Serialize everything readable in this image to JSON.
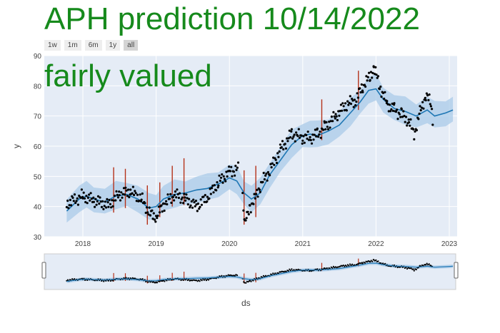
{
  "title": "APH prediction 10/14/2022",
  "subtitle": "fairly valued",
  "range_selector": {
    "buttons": [
      "1w",
      "1m",
      "6m",
      "1y",
      "all"
    ],
    "active": "all"
  },
  "colors": {
    "title": "#168a1c",
    "plot_bg": "#e5ecf6",
    "forecast_line": "#1f77b4",
    "uncertainty_band": "#a9cbe8",
    "actual_points": "#000000",
    "changepoints": "#b5321a"
  },
  "chart_data": {
    "type": "line",
    "title": "APH prediction 10/14/2022",
    "xlabel": "ds",
    "ylabel": "y",
    "xlim": [
      2017.7,
      2023.1
    ],
    "ylim": [
      30,
      90
    ],
    "grid": true,
    "x_ticks": [
      "2018",
      "2019",
      "2020",
      "2021",
      "2022",
      "2023"
    ],
    "y_ticks": [
      30,
      40,
      50,
      60,
      70,
      80,
      90
    ],
    "forecast": {
      "x": [
        2017.78,
        2017.95,
        2018.05,
        2018.15,
        2018.3,
        2018.45,
        2018.6,
        2018.75,
        2018.9,
        2019.0,
        2019.1,
        2019.25,
        2019.4,
        2019.55,
        2019.7,
        2019.85,
        2020.0,
        2020.1,
        2020.2,
        2020.3,
        2020.42,
        2020.55,
        2020.7,
        2020.85,
        2021.0,
        2021.1,
        2021.2,
        2021.35,
        2021.5,
        2021.65,
        2021.78,
        2021.9,
        2022.0,
        2022.1,
        2022.25,
        2022.4,
        2022.55,
        2022.7,
        2022.8,
        2022.95,
        2023.05
      ],
      "y": [
        38.5,
        42.5,
        43.5,
        42.5,
        41.5,
        43.5,
        44,
        42.5,
        39.5,
        40,
        42.5,
        44,
        44.5,
        45.5,
        46,
        47.5,
        49.5,
        48.5,
        44.5,
        42.5,
        44.5,
        50.5,
        55.5,
        60.5,
        63.5,
        64,
        63.5,
        65,
        67,
        71,
        74.5,
        78.5,
        79,
        75.5,
        72.5,
        71.5,
        70,
        72,
        70,
        71,
        72
      ]
    },
    "band_halfwidth": 3.8,
    "actual_segments": [
      {
        "x": [
          2017.78,
          2018.0,
          2018.15,
          2018.35,
          2018.5,
          2018.65,
          2018.8,
          2018.92,
          2019.0,
          2019.1,
          2019.25,
          2019.4,
          2019.55,
          2019.7,
          2019.85,
          2020.0,
          2020.12
        ],
        "y": [
          41,
          43.5,
          42,
          40.5,
          44,
          45,
          42.5,
          37.5,
          36.5,
          40.5,
          44,
          42.5,
          40,
          43,
          48,
          51.5,
          52.5
        ]
      },
      {
        "x": [
          2020.18,
          2020.21,
          2020.24,
          2020.28,
          2020.34,
          2020.42,
          2020.55,
          2020.7,
          2020.85,
          2021.0,
          2021.1,
          2021.2,
          2021.3,
          2021.45,
          2021.6,
          2021.72,
          2021.82,
          2021.92,
          2021.97,
          2022.05,
          2022.15,
          2022.25,
          2022.35,
          2022.45,
          2022.52,
          2022.6,
          2022.68,
          2022.75,
          2022.78
        ],
        "y": [
          44,
          34,
          36.5,
          40,
          42,
          47,
          52,
          59,
          64,
          63,
          62.5,
          64,
          66,
          70,
          74,
          75,
          80,
          83,
          86,
          80,
          74,
          72,
          70.5,
          68,
          64,
          71,
          77,
          74,
          68
        ]
      }
    ],
    "changepoints": [
      {
        "x": 2018.42,
        "y0": 38,
        "y1": 53
      },
      {
        "x": 2018.58,
        "y0": 39.5,
        "y1": 52.5
      },
      {
        "x": 2018.88,
        "y0": 34,
        "y1": 47
      },
      {
        "x": 2019.05,
        "y0": 36.5,
        "y1": 48
      },
      {
        "x": 2019.22,
        "y0": 40,
        "y1": 53.5
      },
      {
        "x": 2019.38,
        "y0": 40.5,
        "y1": 56
      },
      {
        "x": 2020.2,
        "y0": 34,
        "y1": 52
      },
      {
        "x": 2020.36,
        "y0": 36.5,
        "y1": 53.5
      },
      {
        "x": 2021.26,
        "y0": 62,
        "y1": 75.5
      },
      {
        "x": 2021.76,
        "y0": 72,
        "y1": 85
      }
    ]
  }
}
